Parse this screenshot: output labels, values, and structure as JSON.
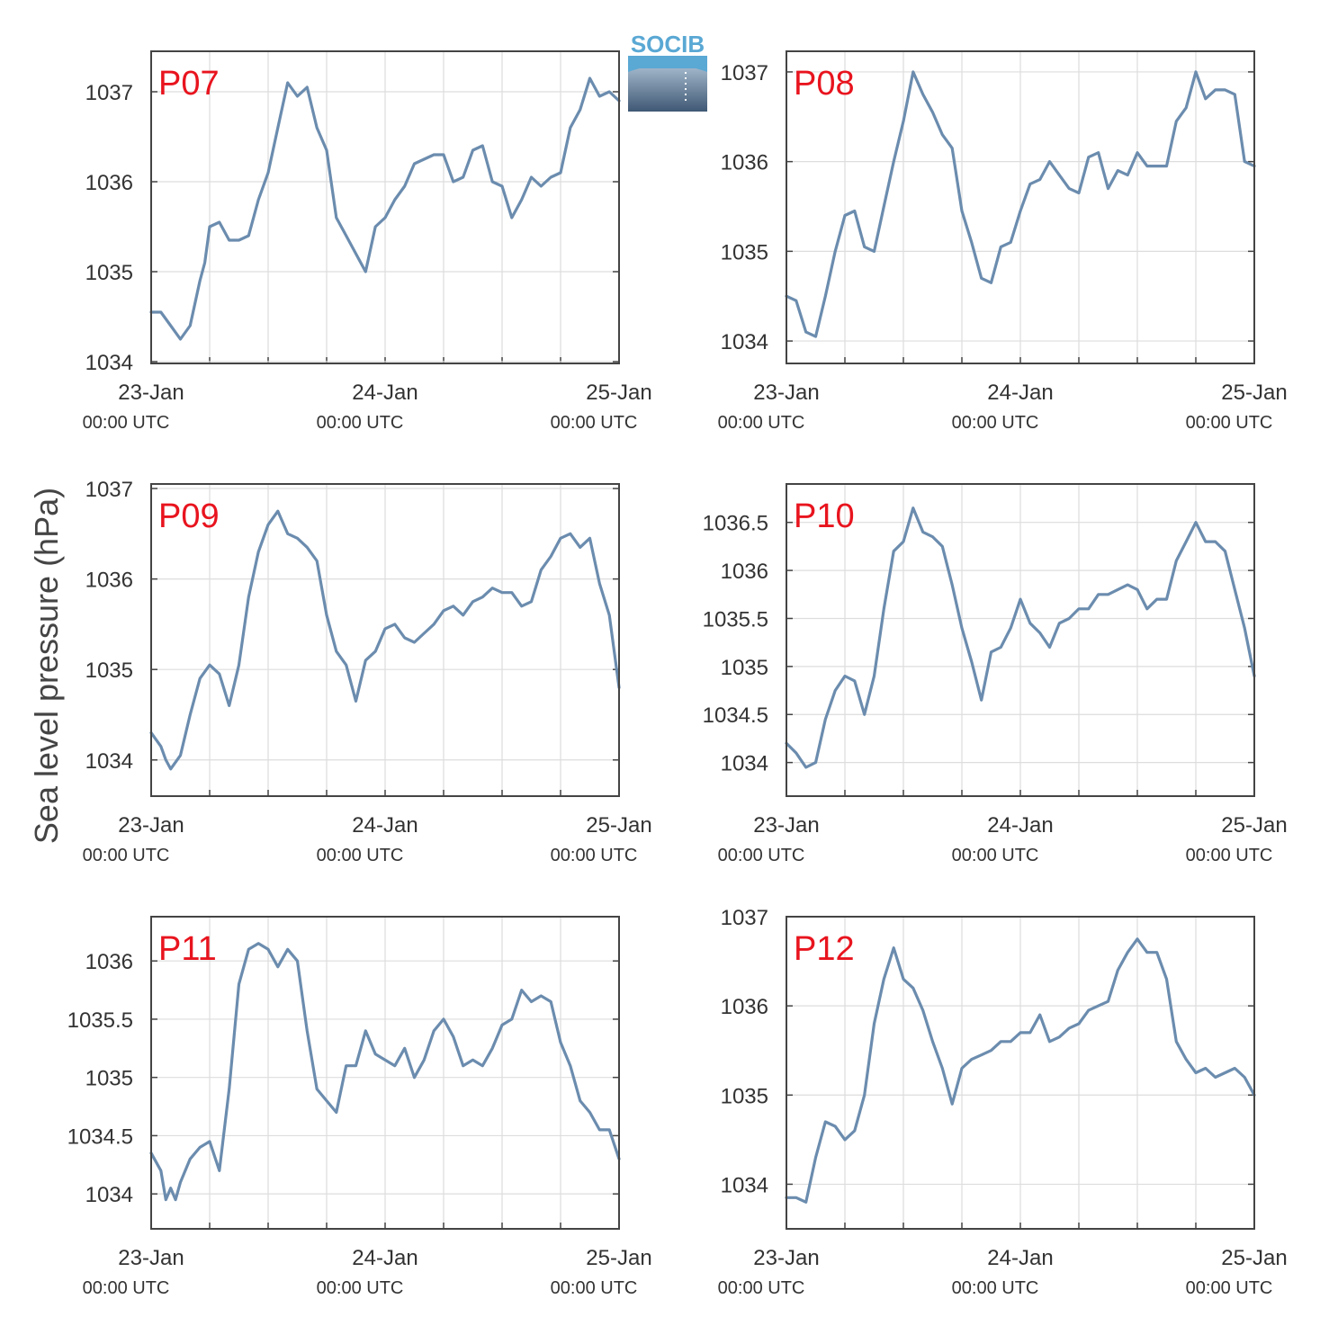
{
  "figure": {
    "ylabel": "Sea level pressure (hPa)",
    "logo_text": "SOCIB",
    "line_color": "#6b8cae",
    "label_color": "#e8141e",
    "grid_color": "#dddddd"
  },
  "chart_data": [
    {
      "type": "line",
      "name": "P07",
      "ylim": [
        1033.98,
        1037.45
      ],
      "yticks": [
        1034,
        1035,
        1036,
        1037
      ],
      "ytick_labels": [
        "1034",
        "1035",
        "1036",
        "1037"
      ],
      "xticks": [
        0,
        24,
        48
      ],
      "xtick_labels": [
        "23-Jan",
        "24-Jan",
        "25-Jan"
      ],
      "xtick_sublabels": [
        "00:00 UTC",
        "00:00 UTC",
        "00:00 UTC"
      ],
      "x": [
        0,
        1,
        2,
        3,
        4,
        5,
        5.5,
        6,
        7,
        8,
        9,
        10,
        11,
        12,
        13,
        14,
        15,
        16,
        17,
        18,
        19,
        20,
        21,
        22,
        23,
        24,
        25,
        26,
        27,
        28,
        29,
        30,
        31,
        32,
        33,
        34,
        35,
        36,
        37,
        38,
        39,
        40,
        41,
        42,
        43,
        44,
        45,
        46,
        47,
        48
      ],
      "y": [
        1034.55,
        1034.55,
        1034.4,
        1034.25,
        1034.4,
        1034.9,
        1035.1,
        1035.5,
        1035.55,
        1035.35,
        1035.35,
        1035.4,
        1035.8,
        1036.1,
        1036.6,
        1037.1,
        1036.95,
        1037.05,
        1036.6,
        1036.35,
        1035.6,
        1035.4,
        1035.2,
        1035.0,
        1035.5,
        1035.6,
        1035.8,
        1035.95,
        1036.2,
        1036.25,
        1036.3,
        1036.3,
        1036.0,
        1036.05,
        1036.35,
        1036.4,
        1036.0,
        1035.95,
        1035.6,
        1035.8,
        1036.05,
        1035.95,
        1036.05,
        1036.1,
        1036.6,
        1036.8,
        1037.15,
        1036.95,
        1037.0,
        1036.9
      ]
    },
    {
      "type": "line",
      "name": "P08",
      "ylim": [
        1033.75,
        1037.23
      ],
      "yticks": [
        1034,
        1035,
        1036,
        1037
      ],
      "ytick_labels": [
        "1034",
        "1035",
        "1036",
        "1037"
      ],
      "xticks": [
        0,
        24,
        48
      ],
      "xtick_labels": [
        "23-Jan",
        "24-Jan",
        "25-Jan"
      ],
      "xtick_sublabels": [
        "00:00 UTC",
        "00:00 UTC",
        "00:00 UTC"
      ],
      "x": [
        0,
        1,
        2,
        3,
        4,
        5,
        6,
        7,
        8,
        9,
        10,
        11,
        12,
        13,
        14,
        15,
        16,
        17,
        18,
        19,
        20,
        21,
        22,
        23,
        24,
        25,
        26,
        27,
        28,
        29,
        30,
        31,
        32,
        33,
        34,
        35,
        36,
        37,
        38,
        39,
        40,
        41,
        42,
        43,
        44,
        45,
        46,
        47,
        48
      ],
      "y": [
        1034.5,
        1034.45,
        1034.1,
        1034.05,
        1034.5,
        1035.0,
        1035.4,
        1035.45,
        1035.05,
        1035.0,
        1035.5,
        1036.0,
        1036.45,
        1037.0,
        1036.75,
        1036.55,
        1036.3,
        1036.15,
        1035.45,
        1035.1,
        1034.7,
        1034.65,
        1035.05,
        1035.1,
        1035.45,
        1035.75,
        1035.8,
        1036.0,
        1035.85,
        1035.7,
        1035.65,
        1036.05,
        1036.1,
        1035.7,
        1035.9,
        1035.85,
        1036.1,
        1035.95,
        1035.95,
        1035.95,
        1036.45,
        1036.6,
        1037.0,
        1036.7,
        1036.8,
        1036.8,
        1036.75,
        1036.0,
        1035.95
      ]
    },
    {
      "type": "line",
      "name": "P09",
      "ylim": [
        1033.6,
        1037.05
      ],
      "yticks": [
        1034,
        1035,
        1036,
        1037
      ],
      "ytick_labels": [
        "1034",
        "1035",
        "1036",
        "1037"
      ],
      "xticks": [
        0,
        24,
        48
      ],
      "xtick_labels": [
        "23-Jan",
        "24-Jan",
        "25-Jan"
      ],
      "xtick_sublabels": [
        "00:00 UTC",
        "00:00 UTC",
        "00:00 UTC"
      ],
      "x": [
        0,
        1,
        1.5,
        2,
        3,
        4,
        5,
        6,
        7,
        8,
        9,
        10,
        11,
        12,
        13,
        14,
        15,
        16,
        17,
        18,
        19,
        20,
        21,
        22,
        23,
        24,
        25,
        26,
        27,
        28,
        29,
        30,
        31,
        32,
        33,
        34,
        35,
        36,
        37,
        38,
        39,
        40,
        41,
        42,
        43,
        44,
        45,
        46,
        47,
        48
      ],
      "y": [
        1034.3,
        1034.15,
        1034.0,
        1033.9,
        1034.05,
        1034.5,
        1034.9,
        1035.05,
        1034.95,
        1034.6,
        1035.05,
        1035.8,
        1036.3,
        1036.6,
        1036.75,
        1036.5,
        1036.45,
        1036.35,
        1036.2,
        1035.6,
        1035.2,
        1035.05,
        1034.65,
        1035.1,
        1035.2,
        1035.45,
        1035.5,
        1035.35,
        1035.3,
        1035.4,
        1035.5,
        1035.65,
        1035.7,
        1035.6,
        1035.75,
        1035.8,
        1035.9,
        1035.85,
        1035.85,
        1035.7,
        1035.75,
        1036.1,
        1036.25,
        1036.45,
        1036.5,
        1036.35,
        1036.45,
        1035.95,
        1035.6,
        1034.8
      ]
    },
    {
      "type": "line",
      "name": "P10",
      "ylim": [
        1033.65,
        1036.9
      ],
      "yticks": [
        1034,
        1034.5,
        1035,
        1035.5,
        1036,
        1036.5
      ],
      "ytick_labels": [
        "1034",
        "1034.5",
        "1035",
        "1035.5",
        "1036",
        "1036.5"
      ],
      "xticks": [
        0,
        24,
        48
      ],
      "xtick_labels": [
        "23-Jan",
        "24-Jan",
        "25-Jan"
      ],
      "xtick_sublabels": [
        "00:00 UTC",
        "00:00 UTC",
        "00:00 UTC"
      ],
      "x": [
        0,
        1,
        2,
        3,
        4,
        5,
        6,
        7,
        8,
        9,
        10,
        11,
        12,
        13,
        14,
        15,
        16,
        17,
        18,
        19,
        20,
        21,
        22,
        23,
        24,
        25,
        26,
        27,
        28,
        29,
        30,
        31,
        32,
        33,
        34,
        35,
        36,
        37,
        38,
        39,
        40,
        41,
        42,
        43,
        44,
        45,
        46,
        47,
        48
      ],
      "y": [
        1034.2,
        1034.1,
        1033.95,
        1034.0,
        1034.45,
        1034.75,
        1034.9,
        1034.85,
        1034.5,
        1034.9,
        1035.6,
        1036.2,
        1036.3,
        1036.65,
        1036.4,
        1036.35,
        1036.25,
        1035.85,
        1035.4,
        1035.05,
        1034.65,
        1035.15,
        1035.2,
        1035.4,
        1035.7,
        1035.45,
        1035.35,
        1035.2,
        1035.45,
        1035.5,
        1035.6,
        1035.6,
        1035.75,
        1035.75,
        1035.8,
        1035.85,
        1035.8,
        1035.6,
        1035.7,
        1035.7,
        1036.1,
        1036.3,
        1036.5,
        1036.3,
        1036.3,
        1036.2,
        1035.8,
        1035.4,
        1034.9
      ]
    },
    {
      "type": "line",
      "name": "P11",
      "ylim": [
        1033.7,
        1036.38
      ],
      "yticks": [
        1034,
        1034.5,
        1035,
        1035.5,
        1036
      ],
      "ytick_labels": [
        "1034",
        "1034.5",
        "1035",
        "1035.5",
        "1036"
      ],
      "xticks": [
        0,
        24,
        48
      ],
      "xtick_labels": [
        "23-Jan",
        "24-Jan",
        "25-Jan"
      ],
      "xtick_sublabels": [
        "00:00 UTC",
        "00:00 UTC",
        "00:00 UTC"
      ],
      "x": [
        0,
        1,
        1.5,
        2,
        2.5,
        3,
        4,
        5,
        6,
        7,
        8,
        9,
        10,
        11,
        12,
        13,
        14,
        15,
        16,
        17,
        18,
        19,
        20,
        21,
        22,
        23,
        24,
        25,
        26,
        27,
        28,
        29,
        30,
        31,
        32,
        33,
        34,
        35,
        36,
        37,
        38,
        39,
        40,
        41,
        42,
        43,
        44,
        45,
        46,
        47,
        48
      ],
      "y": [
        1034.35,
        1034.2,
        1033.95,
        1034.05,
        1033.95,
        1034.1,
        1034.3,
        1034.4,
        1034.45,
        1034.2,
        1034.9,
        1035.8,
        1036.1,
        1036.15,
        1036.1,
        1035.95,
        1036.1,
        1036.0,
        1035.4,
        1034.9,
        1034.8,
        1034.7,
        1035.1,
        1035.1,
        1035.4,
        1035.2,
        1035.15,
        1035.1,
        1035.25,
        1035.0,
        1035.15,
        1035.4,
        1035.5,
        1035.35,
        1035.1,
        1035.15,
        1035.1,
        1035.25,
        1035.45,
        1035.5,
        1035.75,
        1035.65,
        1035.7,
        1035.65,
        1035.3,
        1035.1,
        1034.8,
        1034.7,
        1034.55,
        1034.55,
        1034.3
      ]
    },
    {
      "type": "line",
      "name": "P12",
      "ylim": [
        1033.5,
        1037.0
      ],
      "yticks": [
        1034,
        1035,
        1036,
        1037
      ],
      "ytick_labels": [
        "1034",
        "1035",
        "1036",
        "1037"
      ],
      "xticks": [
        0,
        24,
        48
      ],
      "xtick_labels": [
        "23-Jan",
        "24-Jan",
        "25-Jan"
      ],
      "xtick_sublabels": [
        "00:00 UTC",
        "00:00 UTC",
        "00:00 UTC"
      ],
      "x": [
        0,
        1,
        2,
        3,
        4,
        5,
        6,
        7,
        8,
        9,
        10,
        11,
        12,
        13,
        14,
        15,
        16,
        17,
        18,
        19,
        20,
        21,
        22,
        23,
        24,
        25,
        26,
        27,
        28,
        29,
        30,
        31,
        32,
        33,
        34,
        35,
        36,
        37,
        38,
        39,
        40,
        41,
        42,
        43,
        44,
        45,
        46,
        47,
        48
      ],
      "y": [
        1033.85,
        1033.85,
        1033.8,
        1034.3,
        1034.7,
        1034.65,
        1034.5,
        1034.6,
        1035.0,
        1035.8,
        1036.3,
        1036.65,
        1036.3,
        1036.2,
        1035.95,
        1035.6,
        1035.3,
        1034.9,
        1035.3,
        1035.4,
        1035.45,
        1035.5,
        1035.6,
        1035.6,
        1035.7,
        1035.7,
        1035.9,
        1035.6,
        1035.65,
        1035.75,
        1035.8,
        1035.95,
        1036.0,
        1036.05,
        1036.4,
        1036.6,
        1036.75,
        1036.6,
        1036.6,
        1036.3,
        1035.6,
        1035.4,
        1035.25,
        1035.3,
        1035.2,
        1035.25,
        1035.3,
        1035.2,
        1035.0
      ]
    }
  ]
}
